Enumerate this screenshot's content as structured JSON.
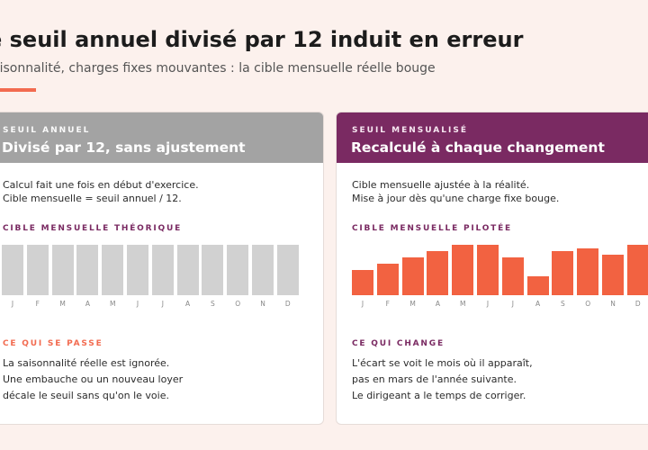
{
  "header": {
    "title": "e seuil annuel divisé par 12 induit en erreur",
    "subtitle": "aisonnalité, charges fixes mouvantes : la cible mensuelle réelle bouge"
  },
  "colors": {
    "accent": "#f26b50",
    "plum": "#7a2a62",
    "neutral_bar": "#d1d1d1",
    "active_bar": "#f26241",
    "background": "#fcf1ed"
  },
  "months": [
    "J",
    "F",
    "M",
    "A",
    "M",
    "J",
    "J",
    "A",
    "S",
    "O",
    "N",
    "D"
  ],
  "left_panel": {
    "kicker": "SEUIL ANNUEL",
    "headline": "Divisé par 12, sans ajustement",
    "desc": [
      "Calcul fait une fois en début d'exercice.",
      "Cible mensuelle = seuil annuel / 12."
    ],
    "chart_label": "CIBLE MENSUELLE THÉORIQUE",
    "bar_levels": [
      1,
      1,
      1,
      1,
      1,
      1,
      1,
      1,
      1,
      1,
      1,
      1
    ],
    "section_label": "CE QUI SE PASSE",
    "body": [
      "La saisonnalité réelle est ignorée.",
      "Une embauche ou un nouveau loyer",
      "décale le seuil sans qu'on le voie."
    ]
  },
  "right_panel": {
    "kicker": "SEUIL MENSUALISÉ",
    "headline": "Recalculé à chaque changement",
    "desc": [
      "Cible mensuelle ajustée à la réalité.",
      "Mise à jour dès qu'une charge fixe bouge."
    ],
    "chart_label": "CIBLE MENSUELLE PILOTÉE",
    "bar_levels": [
      0.5,
      0.62,
      0.75,
      0.87,
      1,
      1,
      0.75,
      0.37,
      0.87,
      0.93,
      0.81,
      1
    ],
    "section_label": "CE QUI CHANGE",
    "body": [
      "L'écart se voit le mois où il apparaît,",
      "pas en mars de l'année suivante.",
      "Le dirigeant a le temps de corriger."
    ]
  }
}
